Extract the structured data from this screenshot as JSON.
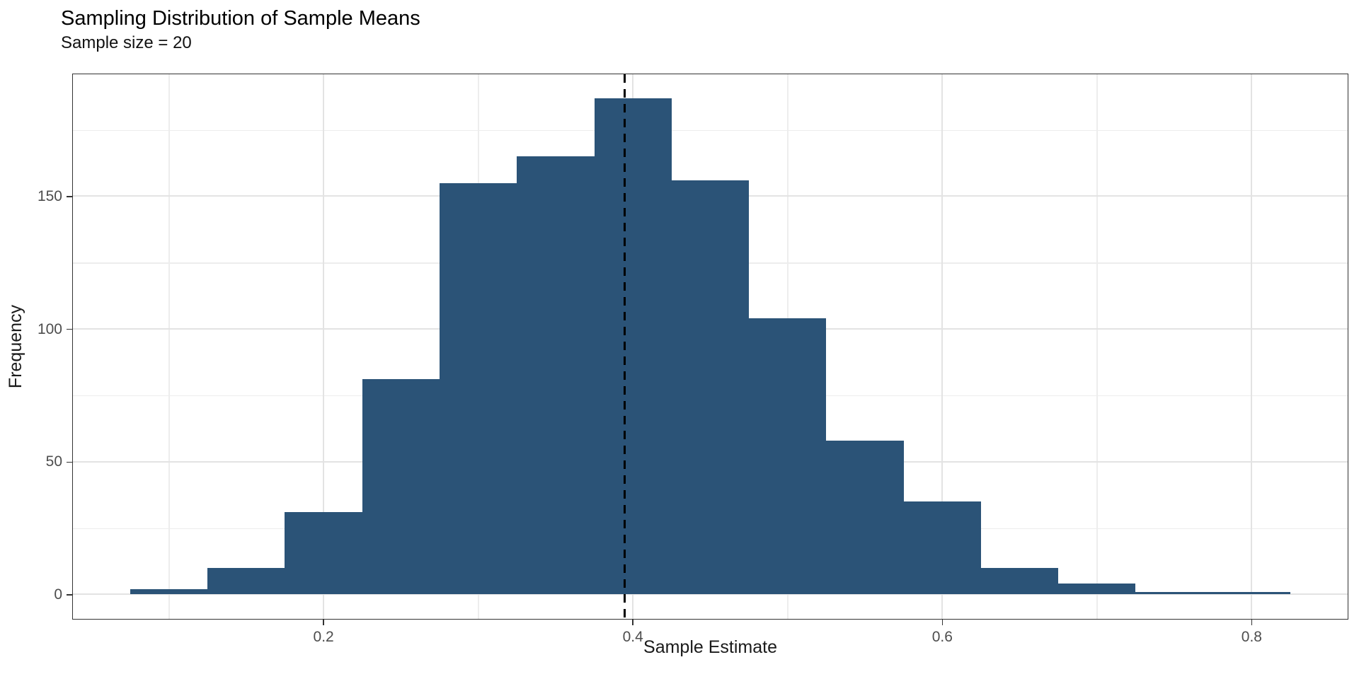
{
  "chart_data": {
    "type": "bar",
    "subtype": "histogram",
    "title": "Sampling Distribution of Sample Means",
    "subtitle": "Sample size = 20",
    "xlabel": "Sample Estimate",
    "ylabel": "Frequency",
    "bin_width": 0.05,
    "bin_edges": [
      0.075,
      0.125,
      0.175,
      0.225,
      0.275,
      0.325,
      0.375,
      0.425,
      0.475,
      0.525,
      0.575,
      0.625,
      0.675,
      0.725,
      0.775,
      0.825
    ],
    "counts": [
      2,
      10,
      31,
      81,
      155,
      165,
      187,
      156,
      104,
      58,
      35,
      10,
      4,
      1,
      1
    ],
    "x_ticks": [
      {
        "v": 0.2,
        "label": "0.2"
      },
      {
        "v": 0.4,
        "label": "0.4"
      },
      {
        "v": 0.6,
        "label": "0.6"
      },
      {
        "v": 0.8,
        "label": "0.8"
      }
    ],
    "y_ticks": [
      {
        "v": 0,
        "label": "0"
      },
      {
        "v": 50,
        "label": "50"
      },
      {
        "v": 100,
        "label": "100"
      },
      {
        "v": 150,
        "label": "150"
      }
    ],
    "x_minor_ticks": [
      0.1,
      0.3,
      0.5,
      0.7
    ],
    "y_minor_ticks": [
      25,
      75,
      125,
      175
    ],
    "xlim": [
      0.0375,
      0.8625
    ],
    "ylim": [
      -9.35,
      196.35
    ],
    "vline": {
      "x": 0.395,
      "style": "dashed"
    },
    "grid": "major+minor",
    "legend": "none",
    "colors": {
      "bar_fill": "#2B5377",
      "vline": "#000000",
      "grid_major": "#E3E3E3",
      "grid_minor": "#EDEDED",
      "panel_border": "#333333",
      "tick_mark": "#333333",
      "tick_label": "#4D4D4D",
      "title_text": "#000000",
      "axis_title": "#1A1A1A",
      "background": "#FFFFFF"
    }
  }
}
